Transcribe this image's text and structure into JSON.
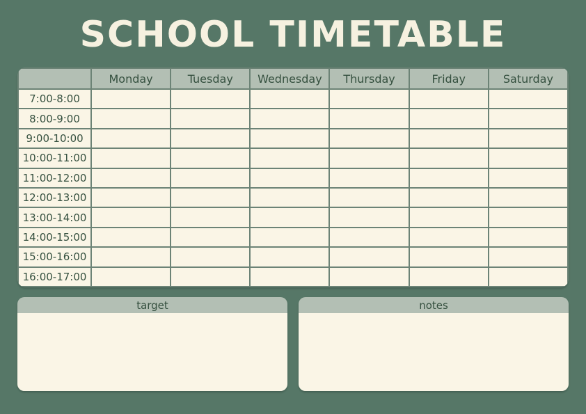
{
  "title": "SCHOOL TIMETABLE",
  "timetable": {
    "corner_label": "",
    "days": [
      "Monday",
      "Tuesday",
      "Wednesday",
      "Thursday",
      "Friday",
      "Saturday"
    ],
    "time_slots": [
      "7:00-8:00",
      "8:00-9:00",
      "9:00-10:00",
      "10:00-11:00",
      "11:00-12:00",
      "12:00-13:00",
      "13:00-14:00",
      "14:00-15:00",
      "15:00-16:00",
      "16:00-17:00"
    ]
  },
  "panels": {
    "target": {
      "label": "target",
      "content": ""
    },
    "notes": {
      "label": "notes",
      "content": ""
    }
  },
  "colors": {
    "background": "#567767",
    "header_bar": "#B3BFB4",
    "cell_background": "#FAF5E6",
    "grid_line": "#6C8376",
    "text": "#35503F",
    "title_text": "#F6F1E0"
  }
}
